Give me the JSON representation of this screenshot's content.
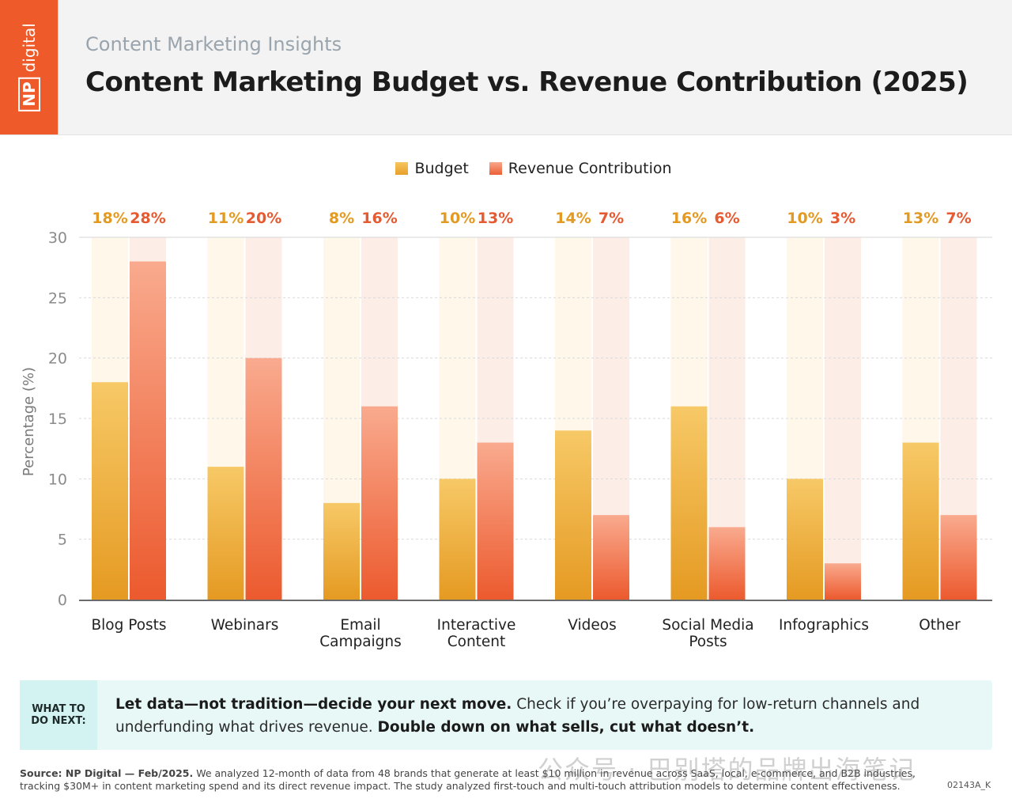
{
  "brand": {
    "logo_np": "NP",
    "logo_digital": "digital",
    "accent": "#ef5a2a"
  },
  "header": {
    "subtitle": "Content Marketing Insights",
    "title": "Content Marketing Budget vs. Revenue Contribution (2025)"
  },
  "chart_data": {
    "type": "bar",
    "categories": [
      "Blog Posts",
      "Webinars",
      "Email Campaigns",
      "Interactive Content",
      "Videos",
      "Social Media Posts",
      "Infographics",
      "Other"
    ],
    "category_lines": [
      [
        "Blog Posts"
      ],
      [
        "Webinars"
      ],
      [
        "Email",
        "Campaigns"
      ],
      [
        "Interactive",
        "Content"
      ],
      [
        "Videos"
      ],
      [
        "Social Media",
        "Posts"
      ],
      [
        "Infographics"
      ],
      [
        "Other"
      ]
    ],
    "series": [
      {
        "name": "Budget",
        "values": [
          18,
          11,
          8,
          10,
          14,
          16,
          10,
          13
        ],
        "labels": [
          "18%",
          "11%",
          "8%",
          "10%",
          "14%",
          "16%",
          "10%",
          "13%"
        ],
        "color": "#f2b33d",
        "label_color": "#e29a23"
      },
      {
        "name": "Revenue Contribution",
        "values": [
          28,
          20,
          16,
          13,
          7,
          6,
          3,
          7
        ],
        "labels": [
          "28%",
          "20%",
          "16%",
          "13%",
          "7%",
          "6%",
          "3%",
          "7%"
        ],
        "color": "#f47b56",
        "label_color": "#e55a30"
      }
    ],
    "ylabel": "Percentage (%)",
    "ylim": [
      0,
      30
    ],
    "yticks": [
      0,
      5,
      10,
      15,
      20,
      25,
      30
    ],
    "grid": true,
    "legend": "top-center"
  },
  "next_steps": {
    "tag": "WHAT TO\nDO NEXT:",
    "bold_1": "Let data—not tradition—decide your next move.",
    "text_1": " Check if you’re overpaying for low-return channels and underfunding what drives revenue. ",
    "bold_2": "Double down on what sells, cut what doesn’t."
  },
  "footer": {
    "source_bold": "Source: NP Digital — Feb/2025.",
    "source_text": " We analyzed 12-month of data from 48 brands that generate at least $10 million in revenue across SaaS, local, e-commerce, and B2B industries, tracking $30M+ in content marketing spend and its direct revenue impact. The study analyzed first-touch and multi-touch attribution models to determine content effectiveness.",
    "code": "02143A_K",
    "watermark": "公众号 · 巴别塔的品牌出海笔记"
  }
}
